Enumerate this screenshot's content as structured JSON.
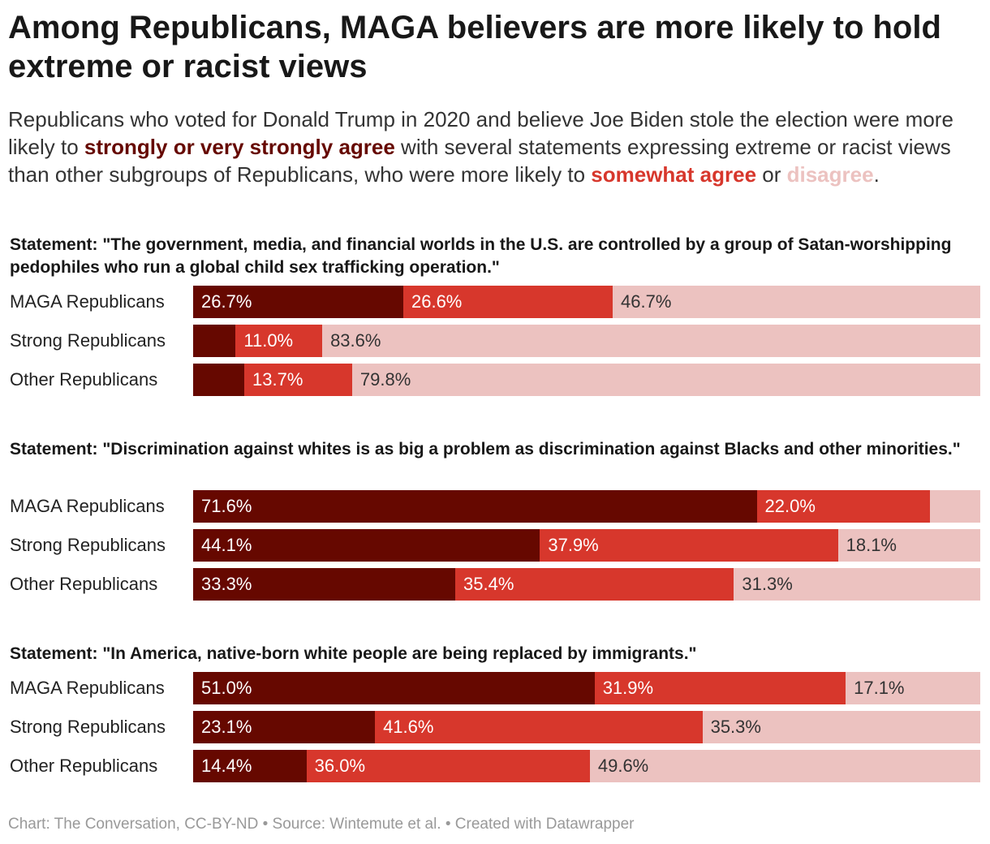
{
  "title": "Among Republicans, MAGA believers are more likely to hold extreme or racist views",
  "subtitle": {
    "part1": "Republicans who voted for Donald Trump in 2020 and believe Joe Biden stole the election were more likely to ",
    "key1": "strongly or very strongly agree",
    "part2": " with several statements expressing extreme or racist views than other subgroups of Republicans, who were more likely to ",
    "key2": "somewhat agree",
    "part3": " or ",
    "key3": "disagree",
    "part4": "."
  },
  "colors": {
    "strongly_agree": "#660800",
    "somewhat_agree": "#d7372c",
    "disagree": "#ecc2c0"
  },
  "chart_data": {
    "type": "bar",
    "stacked": true,
    "orientation": "horizontal",
    "xlim": [
      0,
      100
    ],
    "series_keys": [
      "strongly or very strongly agree",
      "somewhat agree",
      "disagree"
    ],
    "panels": [
      {
        "statement": "Statement: \"The government, media, and financial worlds in the U.S. are controlled by a group of Satan-worshipping pedophiles who run a global child sex trafficking operation.\"",
        "rows": [
          {
            "group": "MAGA Republicans",
            "values": [
              26.7,
              26.6,
              46.7
            ],
            "labels": [
              "26.7%",
              "26.6%",
              "46.7%"
            ]
          },
          {
            "group": "Strong Republicans",
            "values": [
              5.4,
              11.0,
              83.6
            ],
            "labels": [
              "",
              "11.0%",
              "83.6%"
            ]
          },
          {
            "group": "Other Republicans",
            "values": [
              6.5,
              13.7,
              79.8
            ],
            "labels": [
              "",
              "13.7%",
              "79.8%"
            ]
          }
        ]
      },
      {
        "statement": "Statement: \"Discrimination against whites is as big a problem as discrimination against Blacks and other minorities.\"",
        "rows": [
          {
            "group": "MAGA Republicans",
            "values": [
              71.6,
              22.0,
              6.4
            ],
            "labels": [
              "71.6%",
              "22.0%",
              ""
            ]
          },
          {
            "group": "Strong Republicans",
            "values": [
              44.1,
              37.9,
              18.1
            ],
            "labels": [
              "44.1%",
              "37.9%",
              "18.1%"
            ]
          },
          {
            "group": "Other Republicans",
            "values": [
              33.3,
              35.4,
              31.3
            ],
            "labels": [
              "33.3%",
              "35.4%",
              "31.3%"
            ]
          }
        ]
      },
      {
        "statement": "Statement: \"In America, native-born white people are being replaced by immigrants.\"",
        "rows": [
          {
            "group": "MAGA Republicans",
            "values": [
              51.0,
              31.9,
              17.1
            ],
            "labels": [
              "51.0%",
              "31.9%",
              "17.1%"
            ]
          },
          {
            "group": "Strong Republicans",
            "values": [
              23.1,
              41.6,
              35.3
            ],
            "labels": [
              "23.1%",
              "41.6%",
              "35.3%"
            ]
          },
          {
            "group": "Other Republicans",
            "values": [
              14.4,
              36.0,
              49.6
            ],
            "labels": [
              "14.4%",
              "36.0%",
              "49.6%"
            ]
          }
        ]
      }
    ]
  },
  "footer": "Chart: The Conversation, CC-BY-ND • Source: Wintemute et al. • Created with Datawrapper"
}
